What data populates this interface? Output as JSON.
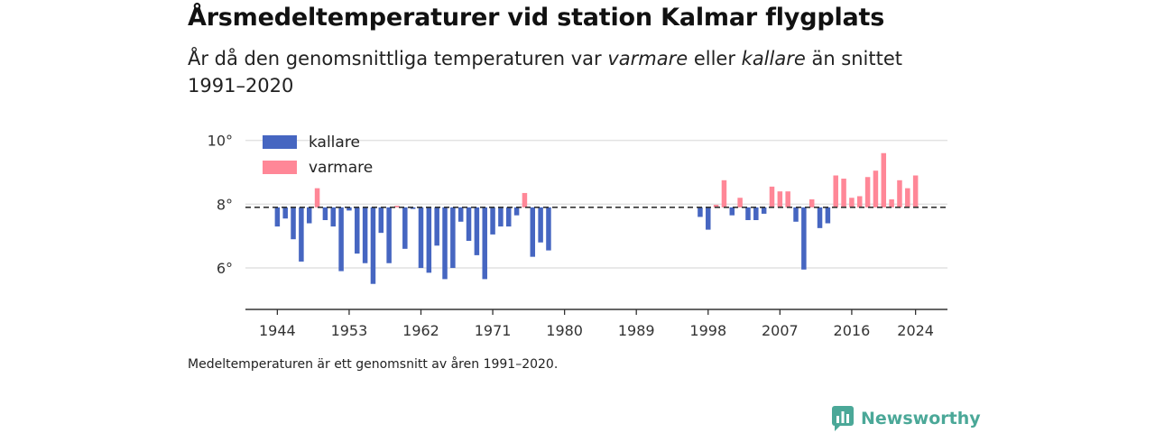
{
  "header": {
    "title": "Årsmedeltemperaturer vid station Kalmar flygplats",
    "subtitle_part1": "År då den genomsnittliga temperaturen var ",
    "subtitle_em1": "varmare",
    "subtitle_part2": " eller ",
    "subtitle_em2": "kallare",
    "subtitle_part3": " än snittet 1991–2020"
  },
  "footnote": "Medeltemperaturen är ett genomsnitt av åren 1991–2020.",
  "brand": {
    "name": "Newsworthy",
    "icon": "newsworthy-logo-icon",
    "color": "#4ba898"
  },
  "chart_data": {
    "type": "bar",
    "baseline": 7.9,
    "ylim": [
      4.7,
      10.3
    ],
    "xlim": [
      1940,
      2028
    ],
    "y_ticks": [
      6,
      8,
      10
    ],
    "y_tick_labels": [
      "6°",
      "8°",
      "10°"
    ],
    "x_ticks": [
      1944,
      1953,
      1962,
      1971,
      1980,
      1989,
      1998,
      2007,
      2016,
      2024
    ],
    "x_tick_labels": [
      "1944",
      "1953",
      "1962",
      "1971",
      "1980",
      "1989",
      "1998",
      "2007",
      "2016",
      "2024"
    ],
    "grid": true,
    "legend_position": "top-left",
    "legend": [
      {
        "key": "kallare",
        "label": "kallare",
        "color": "#4666c1"
      },
      {
        "key": "varmare",
        "label": "varmare",
        "color": "#ff8797"
      }
    ],
    "series": [
      {
        "name": "kallare",
        "color": "#4666c1",
        "points": [
          [
            1944,
            7.3
          ],
          [
            1945,
            7.55
          ],
          [
            1946,
            6.9
          ],
          [
            1947,
            6.2
          ],
          [
            1948,
            7.4
          ],
          [
            1950,
            7.5
          ],
          [
            1951,
            7.3
          ],
          [
            1952,
            5.9
          ],
          [
            1953,
            7.8
          ],
          [
            1954,
            6.45
          ],
          [
            1955,
            6.15
          ],
          [
            1956,
            5.5
          ],
          [
            1957,
            7.1
          ],
          [
            1958,
            6.15
          ],
          [
            1960,
            6.6
          ],
          [
            1961,
            7.85
          ],
          [
            1962,
            6.0
          ],
          [
            1963,
            5.85
          ],
          [
            1964,
            6.7
          ],
          [
            1965,
            5.65
          ],
          [
            1966,
            6.0
          ],
          [
            1967,
            7.45
          ],
          [
            1968,
            6.85
          ],
          [
            1969,
            6.4
          ],
          [
            1970,
            5.65
          ],
          [
            1971,
            7.05
          ],
          [
            1972,
            7.3
          ],
          [
            1973,
            7.3
          ],
          [
            1974,
            7.65
          ],
          [
            1976,
            6.35
          ],
          [
            1977,
            6.8
          ],
          [
            1978,
            6.55
          ],
          [
            1997,
            7.6
          ],
          [
            1998,
            7.2
          ],
          [
            2001,
            7.65
          ],
          [
            2003,
            7.5
          ],
          [
            2004,
            7.5
          ],
          [
            2005,
            7.7
          ],
          [
            2009,
            7.45
          ],
          [
            2010,
            5.95
          ],
          [
            2012,
            7.25
          ],
          [
            2013,
            7.4
          ]
        ]
      },
      {
        "name": "varmare",
        "color": "#ff8797",
        "points": [
          [
            1949,
            8.5
          ],
          [
            1959,
            7.95
          ],
          [
            1975,
            8.35
          ],
          [
            1999,
            7.98
          ],
          [
            2000,
            8.75
          ],
          [
            2002,
            8.2
          ],
          [
            2006,
            8.55
          ],
          [
            2007,
            8.4
          ],
          [
            2008,
            8.4
          ],
          [
            2011,
            8.15
          ],
          [
            2014,
            8.9
          ],
          [
            2015,
            8.8
          ],
          [
            2016,
            8.2
          ],
          [
            2017,
            8.25
          ],
          [
            2018,
            8.85
          ],
          [
            2019,
            9.05
          ],
          [
            2020,
            9.6
          ],
          [
            2021,
            8.15
          ],
          [
            2022,
            8.75
          ],
          [
            2023,
            8.5
          ],
          [
            2024,
            8.9
          ]
        ]
      }
    ]
  }
}
